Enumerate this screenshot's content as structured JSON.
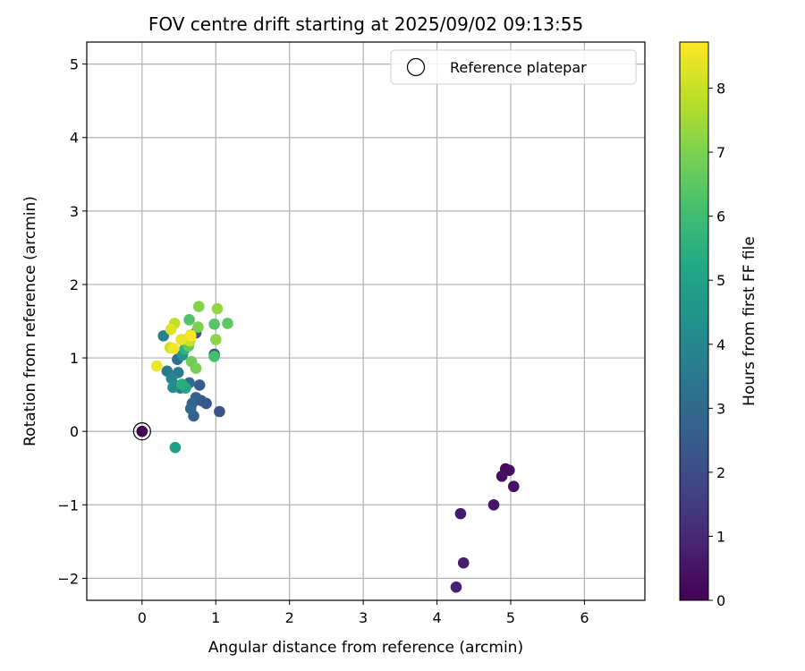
{
  "chart_data": {
    "type": "scatter",
    "title": "FOV centre drift starting at 2025/09/02 09:13:55",
    "xlabel": "Angular distance from reference (arcmin)",
    "ylabel": "Rotation from reference (arcmin)",
    "xlim": [
      -0.75,
      6.82
    ],
    "ylim": [
      -2.3,
      5.3
    ],
    "xticks": [
      "0",
      "1",
      "2",
      "3",
      "4",
      "5",
      "6"
    ],
    "yticks": [
      "−2",
      "−1",
      "0",
      "1",
      "2",
      "3",
      "4",
      "5"
    ],
    "grid": true,
    "legend": {
      "position": "top-right",
      "entries": [
        "Reference platepar"
      ]
    },
    "reference_point": {
      "x": 0.0,
      "y": 0.0
    },
    "colorbar": {
      "label": "Hours from first FF file",
      "colormap": "viridis",
      "range": [
        0,
        8.72
      ],
      "ticks": [
        "0",
        "1",
        "2",
        "3",
        "4",
        "5",
        "6",
        "7",
        "8"
      ]
    },
    "points": [
      {
        "x": 0.0,
        "y": 0.0,
        "c": 0.0
      },
      {
        "x": 4.93,
        "y": -0.51,
        "c": 0.25
      },
      {
        "x": 4.98,
        "y": -0.53,
        "c": 0.3
      },
      {
        "x": 4.88,
        "y": -0.61,
        "c": 0.35
      },
      {
        "x": 5.04,
        "y": -0.75,
        "c": 0.4
      },
      {
        "x": 4.77,
        "y": -1.0,
        "c": 0.5
      },
      {
        "x": 4.32,
        "y": -1.12,
        "c": 0.6
      },
      {
        "x": 4.36,
        "y": -1.79,
        "c": 0.7
      },
      {
        "x": 4.26,
        "y": -2.12,
        "c": 0.8
      },
      {
        "x": 1.05,
        "y": 0.27,
        "c": 2.2
      },
      {
        "x": 0.87,
        "y": 0.38,
        "c": 2.3
      },
      {
        "x": 0.8,
        "y": 0.42,
        "c": 2.4
      },
      {
        "x": 0.78,
        "y": 0.63,
        "c": 2.5
      },
      {
        "x": 0.73,
        "y": 0.46,
        "c": 2.6
      },
      {
        "x": 0.7,
        "y": 0.21,
        "c": 2.7
      },
      {
        "x": 0.68,
        "y": 0.38,
        "c": 2.8
      },
      {
        "x": 0.66,
        "y": 0.31,
        "c": 2.9
      },
      {
        "x": 0.64,
        "y": 0.66,
        "c": 3.0
      },
      {
        "x": 0.73,
        "y": 1.34,
        "c": 2.2
      },
      {
        "x": 0.98,
        "y": 1.05,
        "c": 2.4
      },
      {
        "x": 0.48,
        "y": 0.98,
        "c": 3.2
      },
      {
        "x": 0.52,
        "y": 0.59,
        "c": 3.4
      },
      {
        "x": 0.34,
        "y": 0.82,
        "c": 3.5
      },
      {
        "x": 0.49,
        "y": 0.8,
        "c": 3.6
      },
      {
        "x": 0.29,
        "y": 1.3,
        "c": 3.8
      },
      {
        "x": 0.44,
        "y": 0.63,
        "c": 3.9
      },
      {
        "x": 0.4,
        "y": 0.72,
        "c": 4.0
      },
      {
        "x": 0.42,
        "y": 0.6,
        "c": 4.2
      },
      {
        "x": 0.55,
        "y": 1.04,
        "c": 4.5
      },
      {
        "x": 0.45,
        "y": -0.22,
        "c": 4.9
      },
      {
        "x": 0.59,
        "y": 0.59,
        "c": 5.2
      },
      {
        "x": 0.54,
        "y": 0.64,
        "c": 5.4
      },
      {
        "x": 0.58,
        "y": 1.12,
        "c": 5.6
      },
      {
        "x": 0.98,
        "y": 1.02,
        "c": 6.1
      },
      {
        "x": 0.64,
        "y": 1.52,
        "c": 6.3
      },
      {
        "x": 0.98,
        "y": 1.46,
        "c": 6.4
      },
      {
        "x": 1.16,
        "y": 1.47,
        "c": 6.5
      },
      {
        "x": 0.63,
        "y": 1.16,
        "c": 6.6
      },
      {
        "x": 0.67,
        "y": 0.95,
        "c": 6.8
      },
      {
        "x": 0.73,
        "y": 0.86,
        "c": 6.9
      },
      {
        "x": 0.76,
        "y": 1.42,
        "c": 7.0
      },
      {
        "x": 0.77,
        "y": 1.7,
        "c": 7.1
      },
      {
        "x": 1.0,
        "y": 1.25,
        "c": 7.2
      },
      {
        "x": 1.02,
        "y": 1.67,
        "c": 7.3
      },
      {
        "x": 0.6,
        "y": 1.25,
        "c": 7.4
      },
      {
        "x": 0.66,
        "y": 1.31,
        "c": 7.6
      },
      {
        "x": 0.44,
        "y": 1.47,
        "c": 7.9
      },
      {
        "x": 0.65,
        "y": 1.23,
        "c": 8.0
      },
      {
        "x": 0.38,
        "y": 1.14,
        "c": 8.1
      },
      {
        "x": 0.39,
        "y": 1.39,
        "c": 8.3
      },
      {
        "x": 0.53,
        "y": 1.25,
        "c": 8.4
      },
      {
        "x": 0.2,
        "y": 0.89,
        "c": 8.5
      },
      {
        "x": 0.43,
        "y": 1.13,
        "c": 8.6
      },
      {
        "x": 0.66,
        "y": 1.3,
        "c": 8.7
      }
    ]
  }
}
